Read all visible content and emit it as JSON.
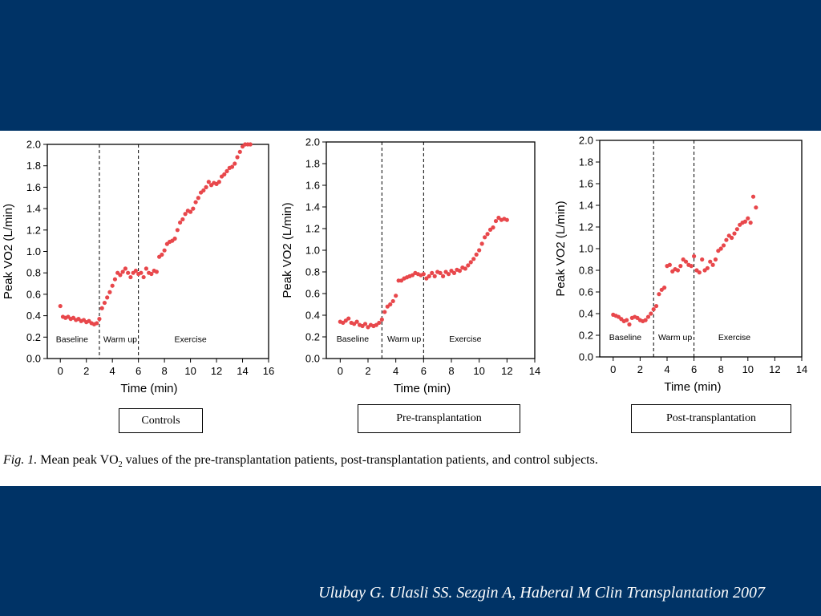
{
  "caption": {
    "fig_label": "Fig. 1.",
    "text_before": " Mean peak VO",
    "subscript": "2",
    "text_after": " values of the pre-transplantation patients, post-transplantation patients, and control subjects."
  },
  "citation": "Ulubay G. Ulasli SS. Sezgin A, Haberal M Clin Transplantation 2007",
  "chart_data": [
    {
      "type": "scatter",
      "group_label": "Controls",
      "xlabel": "Time (min)",
      "ylabel": "Peak VO2 (L/min)",
      "xlim": [
        -1,
        16
      ],
      "ylim": [
        0,
        2.0
      ],
      "xticks": [
        0,
        2,
        4,
        6,
        8,
        10,
        12,
        14,
        16
      ],
      "yticks": [
        0.0,
        0.2,
        0.4,
        0.6,
        0.8,
        1.0,
        1.2,
        1.4,
        1.6,
        1.8,
        2.0
      ],
      "phase_boundaries": [
        3,
        6
      ],
      "regions": [
        {
          "label": "Baseline",
          "x": 0.9
        },
        {
          "label": "Warm up",
          "x": 4.6
        },
        {
          "label": "Exercise",
          "x": 10.0
        }
      ],
      "marker_color": "#e8474b",
      "points": [
        [
          0.0,
          0.49
        ],
        [
          0.2,
          0.39
        ],
        [
          0.4,
          0.38
        ],
        [
          0.6,
          0.39
        ],
        [
          0.8,
          0.37
        ],
        [
          1.0,
          0.38
        ],
        [
          1.2,
          0.36
        ],
        [
          1.4,
          0.37
        ],
        [
          1.6,
          0.35
        ],
        [
          1.8,
          0.36
        ],
        [
          2.0,
          0.34
        ],
        [
          2.2,
          0.35
        ],
        [
          2.4,
          0.33
        ],
        [
          2.6,
          0.32
        ],
        [
          2.8,
          0.33
        ],
        [
          3.0,
          0.37
        ],
        [
          3.2,
          0.47
        ],
        [
          3.4,
          0.52
        ],
        [
          3.6,
          0.57
        ],
        [
          3.8,
          0.62
        ],
        [
          4.0,
          0.68
        ],
        [
          4.2,
          0.74
        ],
        [
          4.4,
          0.8
        ],
        [
          4.6,
          0.78
        ],
        [
          4.8,
          0.81
        ],
        [
          5.0,
          0.84
        ],
        [
          5.2,
          0.8
        ],
        [
          5.4,
          0.76
        ],
        [
          5.6,
          0.8
        ],
        [
          5.8,
          0.82
        ],
        [
          6.0,
          0.79
        ],
        [
          6.2,
          0.8
        ],
        [
          6.4,
          0.76
        ],
        [
          6.6,
          0.84
        ],
        [
          6.8,
          0.8
        ],
        [
          7.0,
          0.79
        ],
        [
          7.2,
          0.82
        ],
        [
          7.4,
          0.81
        ],
        [
          7.6,
          0.95
        ],
        [
          7.8,
          0.97
        ],
        [
          8.0,
          1.01
        ],
        [
          8.2,
          1.07
        ],
        [
          8.4,
          1.09
        ],
        [
          8.6,
          1.1
        ],
        [
          8.8,
          1.12
        ],
        [
          9.0,
          1.2
        ],
        [
          9.2,
          1.27
        ],
        [
          9.4,
          1.3
        ],
        [
          9.6,
          1.35
        ],
        [
          9.8,
          1.38
        ],
        [
          10.0,
          1.37
        ],
        [
          10.2,
          1.4
        ],
        [
          10.4,
          1.46
        ],
        [
          10.6,
          1.5
        ],
        [
          10.8,
          1.55
        ],
        [
          11.0,
          1.57
        ],
        [
          11.2,
          1.6
        ],
        [
          11.4,
          1.65
        ],
        [
          11.6,
          1.62
        ],
        [
          11.8,
          1.64
        ],
        [
          12.0,
          1.63
        ],
        [
          12.2,
          1.65
        ],
        [
          12.4,
          1.7
        ],
        [
          12.6,
          1.72
        ],
        [
          12.8,
          1.75
        ],
        [
          13.0,
          1.78
        ],
        [
          13.2,
          1.79
        ],
        [
          13.4,
          1.82
        ],
        [
          13.6,
          1.88
        ],
        [
          13.8,
          1.93
        ],
        [
          14.0,
          1.98
        ],
        [
          14.2,
          2.0
        ],
        [
          14.4,
          2.0
        ],
        [
          14.6,
          2.0
        ]
      ]
    },
    {
      "type": "scatter",
      "group_label": "Pre-transplantation",
      "xlabel": "Time (min)",
      "ylabel": "Peak VO2 (L/min)",
      "xlim": [
        -1,
        14
      ],
      "ylim": [
        0,
        2.0
      ],
      "xticks": [
        0,
        2,
        4,
        6,
        8,
        10,
        12,
        14
      ],
      "yticks": [
        0.0,
        0.2,
        0.4,
        0.6,
        0.8,
        1.0,
        1.2,
        1.4,
        1.6,
        1.8,
        2.0
      ],
      "phase_boundaries": [
        3,
        6
      ],
      "regions": [
        {
          "label": "Baseline",
          "x": 0.9
        },
        {
          "label": "Warm up",
          "x": 4.6
        },
        {
          "label": "Exercise",
          "x": 9.0
        }
      ],
      "marker_color": "#e8474b",
      "points": [
        [
          0.0,
          0.34
        ],
        [
          0.2,
          0.33
        ],
        [
          0.4,
          0.35
        ],
        [
          0.6,
          0.37
        ],
        [
          0.8,
          0.33
        ],
        [
          1.0,
          0.32
        ],
        [
          1.2,
          0.34
        ],
        [
          1.4,
          0.31
        ],
        [
          1.6,
          0.3
        ],
        [
          1.8,
          0.32
        ],
        [
          2.0,
          0.29
        ],
        [
          2.2,
          0.31
        ],
        [
          2.4,
          0.3
        ],
        [
          2.6,
          0.31
        ],
        [
          2.8,
          0.33
        ],
        [
          3.0,
          0.36
        ],
        [
          3.2,
          0.43
        ],
        [
          3.4,
          0.48
        ],
        [
          3.6,
          0.5
        ],
        [
          3.8,
          0.53
        ],
        [
          4.0,
          0.58
        ],
        [
          4.2,
          0.72
        ],
        [
          4.4,
          0.72
        ],
        [
          4.6,
          0.74
        ],
        [
          4.8,
          0.75
        ],
        [
          5.0,
          0.76
        ],
        [
          5.2,
          0.77
        ],
        [
          5.4,
          0.79
        ],
        [
          5.6,
          0.78
        ],
        [
          5.8,
          0.77
        ],
        [
          6.0,
          0.78
        ],
        [
          6.2,
          0.74
        ],
        [
          6.4,
          0.76
        ],
        [
          6.6,
          0.79
        ],
        [
          6.8,
          0.76
        ],
        [
          7.0,
          0.8
        ],
        [
          7.2,
          0.79
        ],
        [
          7.4,
          0.76
        ],
        [
          7.6,
          0.8
        ],
        [
          7.8,
          0.78
        ],
        [
          8.0,
          0.81
        ],
        [
          8.2,
          0.79
        ],
        [
          8.4,
          0.82
        ],
        [
          8.6,
          0.81
        ],
        [
          8.8,
          0.84
        ],
        [
          9.0,
          0.83
        ],
        [
          9.2,
          0.86
        ],
        [
          9.4,
          0.89
        ],
        [
          9.6,
          0.92
        ],
        [
          9.8,
          0.96
        ],
        [
          10.0,
          1.0
        ],
        [
          10.2,
          1.06
        ],
        [
          10.4,
          1.12
        ],
        [
          10.6,
          1.15
        ],
        [
          10.8,
          1.19
        ],
        [
          11.0,
          1.21
        ],
        [
          11.2,
          1.27
        ],
        [
          11.4,
          1.3
        ],
        [
          11.6,
          1.28
        ],
        [
          11.8,
          1.29
        ],
        [
          12.0,
          1.28
        ]
      ]
    },
    {
      "type": "scatter",
      "group_label": "Post-transplantation",
      "xlabel": "Time (min)",
      "ylabel": "Peak VO2 (L/min)",
      "xlim": [
        -1,
        14
      ],
      "ylim": [
        0,
        2.0
      ],
      "xticks": [
        0,
        2,
        4,
        6,
        8,
        10,
        12,
        14
      ],
      "yticks": [
        0.0,
        0.2,
        0.4,
        0.6,
        0.8,
        1.0,
        1.2,
        1.4,
        1.6,
        1.8,
        2.0
      ],
      "phase_boundaries": [
        3,
        6
      ],
      "regions": [
        {
          "label": "Baseline",
          "x": 0.9
        },
        {
          "label": "Warm up",
          "x": 4.6
        },
        {
          "label": "Exercise",
          "x": 9.0
        }
      ],
      "marker_color": "#e8474b",
      "points": [
        [
          0.0,
          0.39
        ],
        [
          0.2,
          0.38
        ],
        [
          0.4,
          0.37
        ],
        [
          0.6,
          0.35
        ],
        [
          0.8,
          0.33
        ],
        [
          1.0,
          0.34
        ],
        [
          1.2,
          0.3
        ],
        [
          1.4,
          0.36
        ],
        [
          1.6,
          0.37
        ],
        [
          1.8,
          0.36
        ],
        [
          2.0,
          0.34
        ],
        [
          2.2,
          0.33
        ],
        [
          2.4,
          0.34
        ],
        [
          2.6,
          0.37
        ],
        [
          2.8,
          0.4
        ],
        [
          3.0,
          0.44
        ],
        [
          3.2,
          0.47
        ],
        [
          3.4,
          0.58
        ],
        [
          3.6,
          0.62
        ],
        [
          3.8,
          0.64
        ],
        [
          4.0,
          0.84
        ],
        [
          4.2,
          0.85
        ],
        [
          4.4,
          0.79
        ],
        [
          4.6,
          0.81
        ],
        [
          4.8,
          0.8
        ],
        [
          5.0,
          0.84
        ],
        [
          5.2,
          0.9
        ],
        [
          5.4,
          0.88
        ],
        [
          5.6,
          0.85
        ],
        [
          5.8,
          0.84
        ],
        [
          6.0,
          0.93
        ],
        [
          6.2,
          0.8
        ],
        [
          6.4,
          0.78
        ],
        [
          6.6,
          0.9
        ],
        [
          6.8,
          0.8
        ],
        [
          7.0,
          0.82
        ],
        [
          7.2,
          0.88
        ],
        [
          7.4,
          0.85
        ],
        [
          7.6,
          0.9
        ],
        [
          7.8,
          0.98
        ],
        [
          8.0,
          1.0
        ],
        [
          8.2,
          1.03
        ],
        [
          8.4,
          1.08
        ],
        [
          8.6,
          1.12
        ],
        [
          8.8,
          1.1
        ],
        [
          9.0,
          1.14
        ],
        [
          9.2,
          1.18
        ],
        [
          9.4,
          1.22
        ],
        [
          9.6,
          1.24
        ],
        [
          9.8,
          1.25
        ],
        [
          10.0,
          1.28
        ],
        [
          10.2,
          1.24
        ],
        [
          10.4,
          1.48
        ],
        [
          10.6,
          1.38
        ]
      ]
    }
  ]
}
